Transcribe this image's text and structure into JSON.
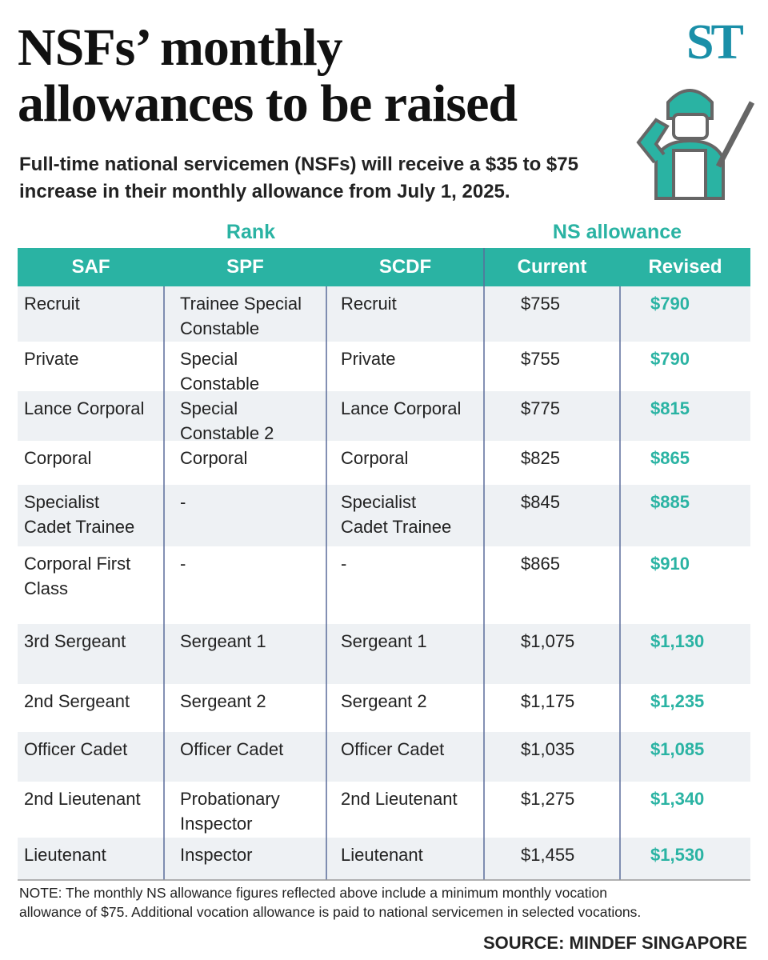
{
  "logo": "ST",
  "title": [
    "NSFs’ monthly",
    "allowances to be raised"
  ],
  "subtitle": [
    "Full-time national servicemen (NSFs) will receive a $35 to $75",
    "increase in their monthly allowance from July 1, 2025."
  ],
  "table": {
    "groups": [
      "Rank",
      "NS allowance"
    ],
    "columns": [
      "SAF",
      "SPF",
      "SCDF",
      "Current",
      "Revised"
    ],
    "rows": [
      [
        "Recruit",
        [
          "Trainee Special",
          "Constable"
        ],
        "Recruit",
        "$755",
        "$790"
      ],
      [
        "Private",
        [
          "Special",
          "Constable"
        ],
        "Private",
        "$755",
        "$790"
      ],
      [
        "Lance Corporal",
        [
          "Special",
          "Constable 2"
        ],
        "Lance Corporal",
        "$775",
        "$815"
      ],
      [
        "Corporal",
        "Corporal",
        "Corporal",
        "$825",
        "$865"
      ],
      [
        [
          "Specialist",
          "Cadet Trainee"
        ],
        "-",
        [
          "Specialist",
          "Cadet Trainee"
        ],
        "$845",
        "$885"
      ],
      [
        [
          "Corporal First",
          "Class"
        ],
        "-",
        "-",
        "$865",
        "$910"
      ],
      [
        "3rd Sergeant",
        "Sergeant 1",
        "Sergeant 1",
        "$1,075",
        "$1,130"
      ],
      [
        "2nd Sergeant",
        "Sergeant 2",
        "Sergeant 2",
        "$1,175",
        "$1,235"
      ],
      [
        "Officer Cadet",
        "Officer Cadet",
        "Officer Cadet",
        "$1,035",
        "$1,085"
      ],
      [
        "2nd Lieutenant",
        [
          "Probationary",
          "Inspector"
        ],
        "2nd Lieutenant",
        "$1,275",
        "$1,340"
      ],
      [
        "Lieutenant",
        "Inspector",
        "Lieutenant",
        "$1,455",
        "$1,530"
      ]
    ]
  },
  "note": [
    "NOTE: The monthly NS allowance figures reflected above include a minimum monthly vocation",
    "allowance of $75. Additional vocation allowance is paid to national servicemen in selected vocations."
  ],
  "source": "SOURCE: MINDEF SINGAPORE"
}
